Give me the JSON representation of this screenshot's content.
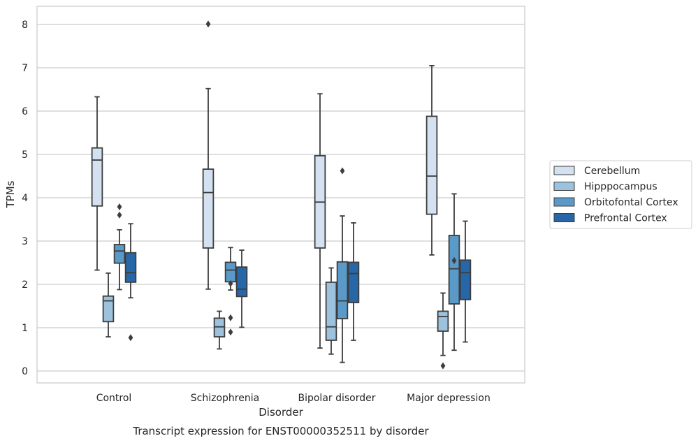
{
  "chart_data": {
    "type": "box",
    "title": "",
    "caption": "Transcript expression for ENST00000352511 by disorder",
    "xlabel": "Disorder",
    "ylabel": "TPMs",
    "ylim": [
      -0.25,
      8.4
    ],
    "yticks": [
      0,
      1,
      2,
      3,
      4,
      5,
      6,
      7,
      8
    ],
    "grid": "horizontal",
    "legend_position": "right",
    "categories": [
      "Control",
      "Schizophrenia",
      "Bipolar disorder",
      "Major depression"
    ],
    "series": [
      {
        "name": "Cerebellum",
        "color": "#d3e1f0",
        "boxes": [
          {
            "low": 2.33,
            "q1": 3.81,
            "median": 4.87,
            "q3": 5.15,
            "high": 6.33,
            "fliers": []
          },
          {
            "low": 1.89,
            "q1": 2.84,
            "median": 4.12,
            "q3": 4.66,
            "high": 6.52,
            "fliers": [
              8.01
            ]
          },
          {
            "low": 0.53,
            "q1": 2.84,
            "median": 3.9,
            "q3": 4.97,
            "high": 6.4,
            "fliers": []
          },
          {
            "low": 2.68,
            "q1": 3.62,
            "median": 4.5,
            "q3": 5.88,
            "high": 7.05,
            "fliers": []
          }
        ]
      },
      {
        "name": "Hipppocampus",
        "color": "#9cc2de",
        "boxes": [
          {
            "low": 0.79,
            "q1": 1.14,
            "median": 1.62,
            "q3": 1.73,
            "high": 2.26,
            "fliers": []
          },
          {
            "low": 0.51,
            "q1": 0.79,
            "median": 1.02,
            "q3": 1.22,
            "high": 1.38,
            "fliers": []
          },
          {
            "low": 0.39,
            "q1": 0.71,
            "median": 1.02,
            "q3": 2.05,
            "high": 2.38,
            "fliers": []
          },
          {
            "low": 0.36,
            "q1": 0.92,
            "median": 1.26,
            "q3": 1.38,
            "high": 1.8,
            "fliers": [
              0.12
            ]
          }
        ]
      },
      {
        "name": "Orbitofontal Cortex",
        "color": "#5a9ac9",
        "boxes": [
          {
            "low": 1.88,
            "q1": 2.49,
            "median": 2.77,
            "q3": 2.92,
            "high": 3.26,
            "fliers": [
              3.6,
              3.79
            ]
          },
          {
            "low": 1.87,
            "q1": 2.06,
            "median": 2.33,
            "q3": 2.51,
            "high": 2.85,
            "fliers": [
              2.02,
              1.23,
              0.9
            ]
          },
          {
            "low": 0.2,
            "q1": 1.21,
            "median": 1.62,
            "q3": 2.52,
            "high": 3.58,
            "fliers": [
              4.62
            ]
          },
          {
            "low": 0.48,
            "q1": 1.55,
            "median": 2.36,
            "q3": 3.13,
            "high": 4.09,
            "fliers": [
              2.55
            ]
          }
        ]
      },
      {
        "name": "Prefrontal Cortex",
        "color": "#2767a7",
        "boxes": [
          {
            "low": 1.69,
            "q1": 2.05,
            "median": 2.27,
            "q3": 2.73,
            "high": 3.4,
            "fliers": [
              0.77
            ]
          },
          {
            "low": 1.01,
            "q1": 1.72,
            "median": 1.89,
            "q3": 2.4,
            "high": 2.79,
            "fliers": []
          },
          {
            "low": 0.71,
            "q1": 1.58,
            "median": 2.25,
            "q3": 2.51,
            "high": 3.42,
            "fliers": []
          },
          {
            "low": 0.67,
            "q1": 1.65,
            "median": 2.27,
            "q3": 2.56,
            "high": 3.46,
            "fliers": []
          }
        ]
      }
    ]
  }
}
